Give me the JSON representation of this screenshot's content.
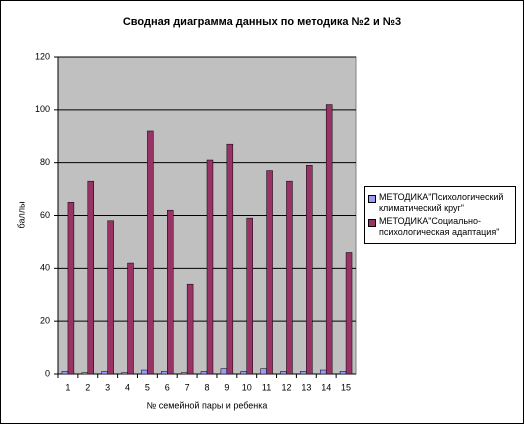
{
  "chart_data": {
    "type": "bar",
    "title": "Сводная диаграмма данных по методика №2 и №3",
    "x_label": "№ семейной пары и ребенка",
    "y_label": "баллы",
    "categories": [
      "1",
      "2",
      "3",
      "4",
      "5",
      "6",
      "7",
      "8",
      "9",
      "10",
      "11",
      "12",
      "13",
      "14",
      "15"
    ],
    "series": [
      {
        "name": "МЕТОДИКА\"Психологический климатический круг\"",
        "color": "#9999ff",
        "values": [
          1,
          0.5,
          1,
          0.5,
          1.5,
          1,
          0.5,
          1,
          2,
          1,
          2,
          1,
          1,
          1.5,
          1
        ]
      },
      {
        "name": "МЕТОДИКА\"Социально-психологическая адаптация\"",
        "color": "#993366",
        "values": [
          65,
          73,
          58,
          42,
          92,
          62,
          34,
          81,
          87,
          59,
          77,
          73,
          79,
          102,
          46
        ]
      }
    ],
    "ylim": [
      0,
      120
    ],
    "yticks": [
      0,
      20,
      40,
      60,
      80,
      100,
      120
    ],
    "grid": true
  }
}
